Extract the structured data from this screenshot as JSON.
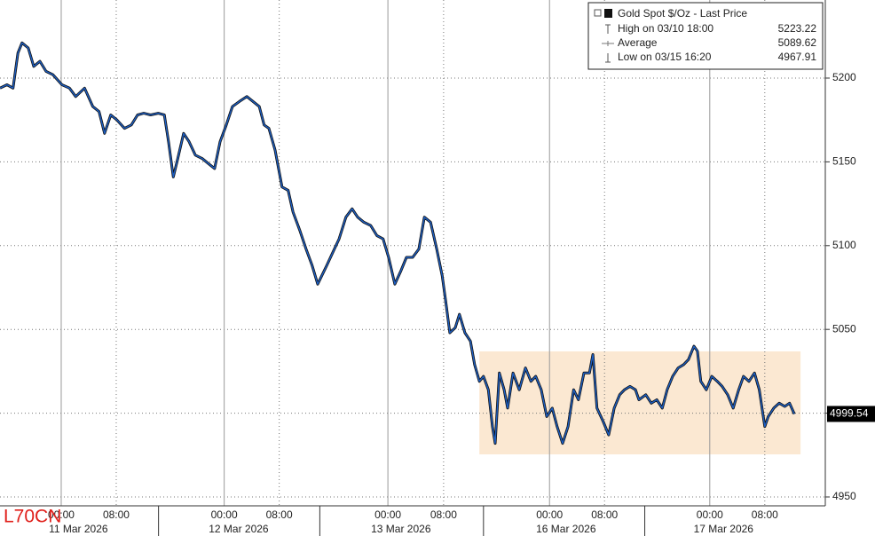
{
  "chart_data": {
    "type": "line",
    "annotation": "L70CN",
    "legend": {
      "stats": [
        {
          "label": "High on 03/10 18:00",
          "value": 5223.22
        },
        {
          "label": "Average",
          "value": 5089.62
        },
        {
          "label": "Low on 03/15 16:20",
          "value": 4967.91
        }
      ]
    },
    "highlight": {
      "x": [
        60.8,
        107.5
      ],
      "y": [
        4975.4,
        5036.9
      ],
      "color": "#fbe8d2"
    },
    "series": [
      {
        "name": "Gold Spot $/Oz - Last Price",
        "color": "#1d5fc4",
        "x": [
          -8.9,
          -7.9,
          -7.0,
          -6.3,
          -5.7,
          -4.8,
          -4.0,
          -3.1,
          -2.2,
          -1.2,
          0.1,
          1.2,
          2.1,
          3.4,
          4.6,
          5.5,
          6.3,
          7.2,
          8.1,
          9.2,
          10.2,
          11.1,
          12.0,
          13.0,
          14.1,
          15.0,
          15.6,
          16.3,
          16.9,
          17.8,
          18.6,
          19.5,
          20.5,
          21.4,
          22.3,
          23.1,
          24.0,
          24.9,
          25.9,
          27.0,
          27.9,
          28.8,
          29.5,
          30.2,
          31.1,
          32.1,
          33.0,
          33.7,
          34.7,
          35.6,
          36.5,
          37.3,
          38.6,
          39.5,
          40.4,
          41.4,
          42.3,
          43.1,
          44.0,
          45.0,
          45.9,
          46.8,
          47.6,
          48.5,
          49.4,
          50.2,
          51.1,
          52.0,
          52.8,
          53.7,
          54.6,
          55.4,
          55.9,
          56.5,
          57.3,
          57.9,
          58.7,
          59.5,
          60.1,
          60.8,
          61.4,
          62.1,
          62.7,
          63.1,
          63.7,
          64.4,
          64.9,
          65.7,
          66.6,
          67.5,
          68.3,
          69.0,
          69.8,
          70.6,
          71.4,
          72.1,
          72.9,
          73.7,
          74.5,
          75.2,
          76.0,
          76.8,
          77.3,
          77.9,
          78.8,
          79.6,
          80.4,
          81.2,
          81.9,
          82.7,
          83.5,
          84.0,
          85.0,
          85.8,
          86.6,
          87.4,
          88.1,
          88.9,
          89.7,
          90.5,
          91.2,
          92.0,
          92.5,
          93.0,
          93.8,
          94.6,
          95.4,
          96.1,
          96.9,
          97.7,
          98.5,
          99.2,
          100.0,
          100.8,
          101.5,
          102.3,
          102.8,
          103.6,
          104.4,
          105.2,
          105.9,
          106.6
        ],
        "values": [
          5194,
          5196,
          5194,
          5215,
          5221,
          5218,
          5207,
          5210,
          5204,
          5202,
          5196,
          5194,
          5189,
          5194,
          5183,
          5180,
          5167,
          5178,
          5175,
          5170,
          5172,
          5178,
          5179,
          5178,
          5179,
          5178,
          5162,
          5141,
          5151,
          5167,
          5162,
          5154,
          5152,
          5149,
          5146,
          5162,
          5172,
          5183,
          5186,
          5189,
          5186,
          5183,
          5172,
          5170,
          5157,
          5135,
          5133,
          5120,
          5109,
          5098,
          5088,
          5077,
          5088,
          5096,
          5104,
          5117,
          5122,
          5117,
          5114,
          5112,
          5106,
          5104,
          5093,
          5077,
          5085,
          5093,
          5093,
          5098,
          5117,
          5114,
          5098,
          5082,
          5067,
          5048,
          5051,
          5059,
          5048,
          5043,
          5029,
          5019,
          5022,
          5014,
          4992,
          4982,
          5024,
          5014,
          5003,
          5024,
          5014,
          5027,
          5019,
          5022,
          5014,
          4998,
          5003,
          4992,
          4982,
          4992,
          5014,
          5008,
          5024,
          5024,
          5035,
          5003,
          4995,
          4987,
          5003,
          5011,
          5014,
          5016,
          5014,
          5008,
          5011,
          5006,
          5008,
          5003,
          5014,
          5022,
          5027,
          5029,
          5032,
          5040,
          5037,
          5019,
          5014,
          5022,
          5019,
          5016,
          5011,
          5003,
          5014,
          5022,
          5019,
          5024,
          5014,
          4992,
          4998,
          5003,
          5006,
          5004,
          5006,
          4999.54
        ]
      }
    ],
    "xlim": [
      -8.9,
      111.1
    ],
    "xticks": [
      {
        "value": 0,
        "label": "00:00"
      },
      {
        "value": 8,
        "label": "08:00"
      },
      {
        "value": 23.7,
        "label": "00:00"
      },
      {
        "value": 31.7,
        "label": "08:00"
      },
      {
        "value": 47.5,
        "label": "00:00"
      },
      {
        "value": 55.6,
        "label": "08:00"
      },
      {
        "value": 71,
        "label": "00:00"
      },
      {
        "value": 79,
        "label": "08:00"
      },
      {
        "value": 94.3,
        "label": "00:00"
      },
      {
        "value": 102.3,
        "label": "08:00"
      }
    ],
    "date_labels": [
      {
        "value": 2.5,
        "label": "11 Mar 2026"
      },
      {
        "value": 25.8,
        "label": "12 Mar 2026"
      },
      {
        "value": 49.4,
        "label": "13 Mar 2026"
      },
      {
        "value": 73.4,
        "label": "16 Mar 2026"
      },
      {
        "value": 96.3,
        "label": "17 Mar 2026"
      }
    ],
    "ylim": [
      4944.7,
      5246.6
    ],
    "yticks": [
      4950,
      5000,
      5050,
      5100,
      5150,
      5200
    ],
    "grid": true
  }
}
